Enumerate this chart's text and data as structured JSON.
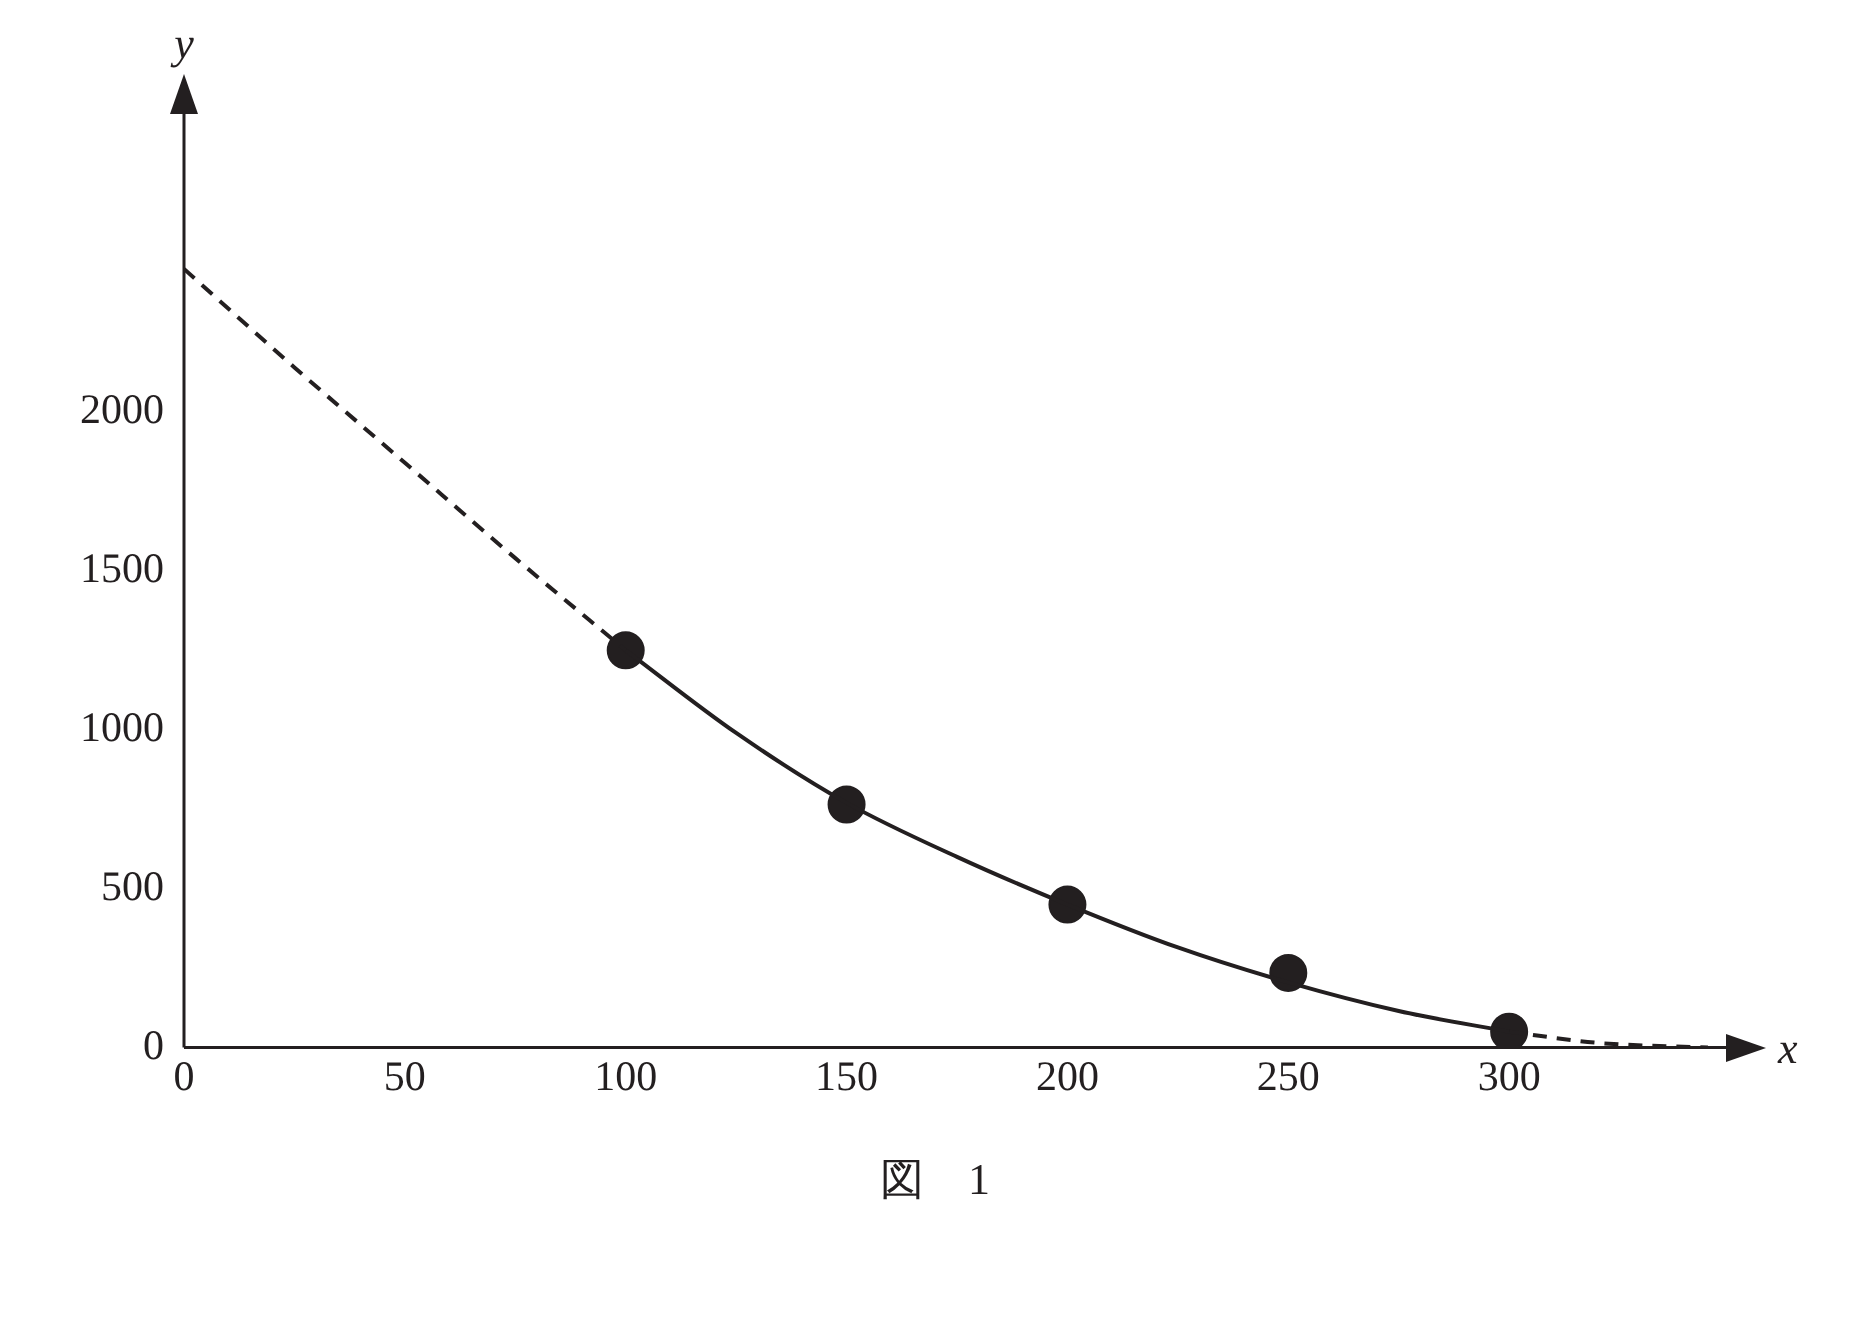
{
  "chart_data": {
    "type": "line",
    "xlabel": "x",
    "ylabel": "y",
    "xlim": [
      0,
      350
    ],
    "ylim": [
      0,
      2950
    ],
    "xticks": [
      0,
      50,
      100,
      150,
      200,
      250,
      300
    ],
    "yticks": [
      0,
      500,
      1000,
      1500,
      2000
    ],
    "grid": false,
    "legend": false,
    "annotations": [
      "図　1"
    ],
    "series": [
      {
        "color": "#231f20",
        "line_style": "dashed",
        "marker": "none",
        "x": [
          0,
          25,
          50,
          75,
          100
        ],
        "values": [
          2450,
          2140,
          1840,
          1540,
          1250
        ]
      },
      {
        "color": "#231f20",
        "line_style": "solid",
        "marker": "none",
        "x": [
          100,
          125,
          150,
          175,
          200,
          225,
          250,
          275,
          300
        ],
        "values": [
          1250,
          990,
          770,
          600,
          450,
          315,
          205,
          115,
          50
        ]
      },
      {
        "color": "#231f20",
        "line_style": "dashed",
        "marker": "none",
        "x": [
          300,
          320,
          345
        ],
        "values": [
          50,
          15,
          0
        ]
      },
      {
        "type": "scatter",
        "color": "#231f20",
        "marker": "circle",
        "x": [
          100,
          150,
          200,
          250,
          300
        ],
        "values": [
          1250,
          765,
          450,
          235,
          50
        ]
      }
    ]
  }
}
